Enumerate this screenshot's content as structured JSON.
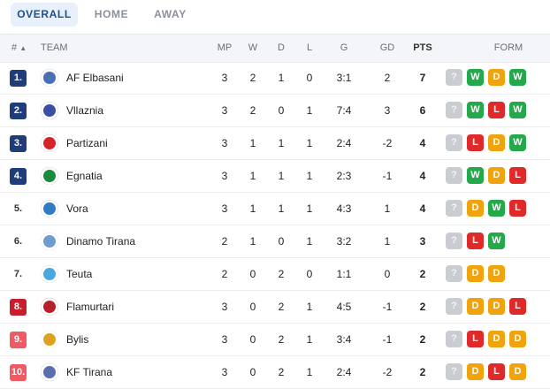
{
  "tabs": {
    "overall": "OVERALL",
    "home": "HOME",
    "away": "AWAY"
  },
  "header": {
    "rank": "#",
    "sort_arrow": "▲",
    "team": "TEAM",
    "mp": "MP",
    "w": "W",
    "d": "D",
    "l": "L",
    "g": "G",
    "gd": "GD",
    "pts": "PTS",
    "form": "FORM"
  },
  "unknown_result": "?",
  "colors": {
    "win": "#23a94a",
    "draw": "#f0a30a",
    "loss": "#e02a2a",
    "unknown": "#c9ccd1",
    "rank_blue": "#1f3d7a",
    "rank_red": "#c81d2f",
    "rank_pink": "#f05a64",
    "active_tab_bg": "#e8f1fb"
  },
  "rows": [
    {
      "rank": "1.",
      "rank_style": "cl",
      "team": "AF Elbasani",
      "logo_color": "#4a6fb5",
      "mp": "3",
      "w": "2",
      "d": "1",
      "l": "0",
      "g": "3:1",
      "gd": "2",
      "pts": "7",
      "form": [
        "?",
        "W",
        "D",
        "W"
      ]
    },
    {
      "rank": "2.",
      "rank_style": "cl",
      "team": "Vllaznia",
      "logo_color": "#3a4fa8",
      "mp": "3",
      "w": "2",
      "d": "0",
      "l": "1",
      "g": "7:4",
      "gd": "3",
      "pts": "6",
      "form": [
        "?",
        "W",
        "L",
        "W"
      ]
    },
    {
      "rank": "3.",
      "rank_style": "cl",
      "team": "Partizani",
      "logo_color": "#d6232a",
      "mp": "3",
      "w": "1",
      "d": "1",
      "l": "1",
      "g": "2:4",
      "gd": "-2",
      "pts": "4",
      "form": [
        "?",
        "L",
        "D",
        "W"
      ]
    },
    {
      "rank": "4.",
      "rank_style": "cl",
      "team": "Egnatia",
      "logo_color": "#1c8a3c",
      "mp": "3",
      "w": "1",
      "d": "1",
      "l": "1",
      "g": "2:3",
      "gd": "-1",
      "pts": "4",
      "form": [
        "?",
        "W",
        "D",
        "L"
      ]
    },
    {
      "rank": "5.",
      "rank_style": "none",
      "team": "Vora",
      "logo_color": "#2f7cc4",
      "mp": "3",
      "w": "1",
      "d": "1",
      "l": "1",
      "g": "4:3",
      "gd": "1",
      "pts": "4",
      "form": [
        "?",
        "D",
        "W",
        "L"
      ]
    },
    {
      "rank": "6.",
      "rank_style": "none",
      "team": "Dinamo Tirana",
      "logo_color": "#6e9bd0",
      "mp": "2",
      "w": "1",
      "d": "0",
      "l": "1",
      "g": "3:2",
      "gd": "1",
      "pts": "3",
      "form": [
        "?",
        "L",
        "W"
      ]
    },
    {
      "rank": "7.",
      "rank_style": "none",
      "team": "Teuta",
      "logo_color": "#4aa8e0",
      "mp": "2",
      "w": "0",
      "d": "2",
      "l": "0",
      "g": "1:1",
      "gd": "0",
      "pts": "2",
      "form": [
        "?",
        "D",
        "D"
      ]
    },
    {
      "rank": "8.",
      "rank_style": "rel",
      "team": "Flamurtari",
      "logo_color": "#b5202a",
      "mp": "3",
      "w": "0",
      "d": "2",
      "l": "1",
      "g": "4:5",
      "gd": "-1",
      "pts": "2",
      "form": [
        "?",
        "D",
        "D",
        "L"
      ]
    },
    {
      "rank": "9.",
      "rank_style": "rp",
      "team": "Bylis",
      "logo_color": "#e0a020",
      "mp": "3",
      "w": "0",
      "d": "2",
      "l": "1",
      "g": "3:4",
      "gd": "-1",
      "pts": "2",
      "form": [
        "?",
        "L",
        "D",
        "D"
      ]
    },
    {
      "rank": "10.",
      "rank_style": "rp",
      "team": "KF Tirana",
      "logo_color": "#5a6fb0",
      "mp": "3",
      "w": "0",
      "d": "2",
      "l": "1",
      "g": "2:4",
      "gd": "-2",
      "pts": "2",
      "form": [
        "?",
        "D",
        "L",
        "D"
      ]
    }
  ]
}
